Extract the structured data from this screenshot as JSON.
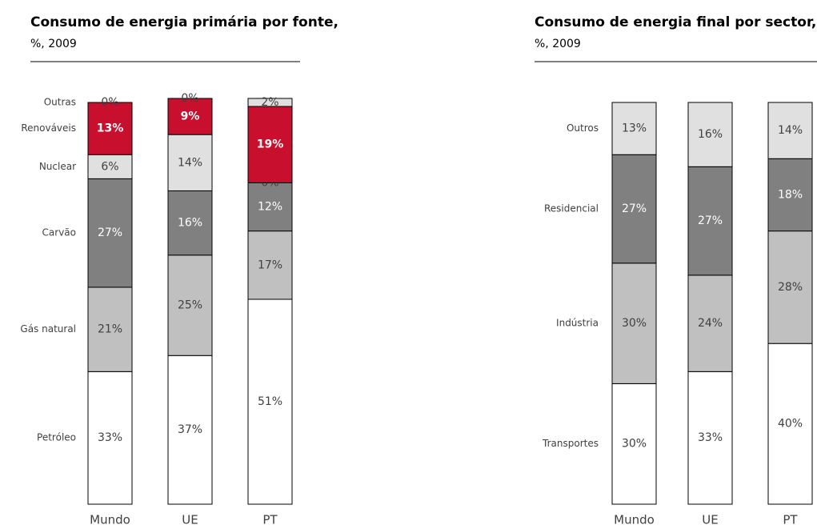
{
  "chart_data": [
    {
      "type": "stacked_bar",
      "title": "Consumo de energia primária por fonte,",
      "subtitle": "%, 2009",
      "categories": [
        "Mundo",
        "UE",
        "PT"
      ],
      "ylim": [
        0,
        100
      ],
      "series": [
        {
          "name": "Petróleo",
          "color": "#ffffff",
          "values": [
            33,
            37,
            51
          ],
          "value_labels": [
            "33%",
            "37%",
            "51%"
          ]
        },
        {
          "name": "Gás natural",
          "color": "#c0c0c0",
          "values": [
            21,
            25,
            17
          ],
          "value_labels": [
            "21%",
            "25%",
            "17%"
          ]
        },
        {
          "name": "Carvão",
          "color": "#808080",
          "values": [
            27,
            16,
            12
          ],
          "value_labels": [
            "27%",
            "16%",
            "12%"
          ]
        },
        {
          "name": "Nuclear",
          "color": "#e0e0e0",
          "values": [
            6,
            14,
            0
          ],
          "value_labels": [
            "6%",
            "14%",
            "0%"
          ]
        },
        {
          "name": "Renováveis",
          "color": "#c8102e",
          "values": [
            13,
            9,
            19
          ],
          "value_labels": [
            "13%",
            "9%",
            "19%"
          ]
        },
        {
          "name": "Outras",
          "color": "#e0e0e0",
          "values": [
            0,
            0,
            2
          ],
          "value_labels": [
            "0%",
            "0%",
            "2%"
          ]
        }
      ]
    },
    {
      "type": "stacked_bar",
      "title": "Consumo de energia final por sector,",
      "subtitle": "%, 2009",
      "categories": [
        "Mundo",
        "UE",
        "PT"
      ],
      "ylim": [
        0,
        100
      ],
      "series": [
        {
          "name": "Transportes",
          "color": "#ffffff",
          "values": [
            30,
            33,
            40
          ],
          "value_labels": [
            "30%",
            "33%",
            "40%"
          ]
        },
        {
          "name": "Indústria",
          "color": "#c0c0c0",
          "values": [
            30,
            24,
            28
          ],
          "value_labels": [
            "30%",
            "24%",
            "28%"
          ]
        },
        {
          "name": "Residencial",
          "color": "#808080",
          "values": [
            27,
            27,
            18
          ],
          "value_labels": [
            "27%",
            "27%",
            "18%"
          ]
        },
        {
          "name": "Outros",
          "color": "#e0e0e0",
          "values": [
            13,
            16,
            14
          ],
          "value_labels": [
            "13%",
            "16%",
            "14%"
          ]
        }
      ]
    }
  ]
}
